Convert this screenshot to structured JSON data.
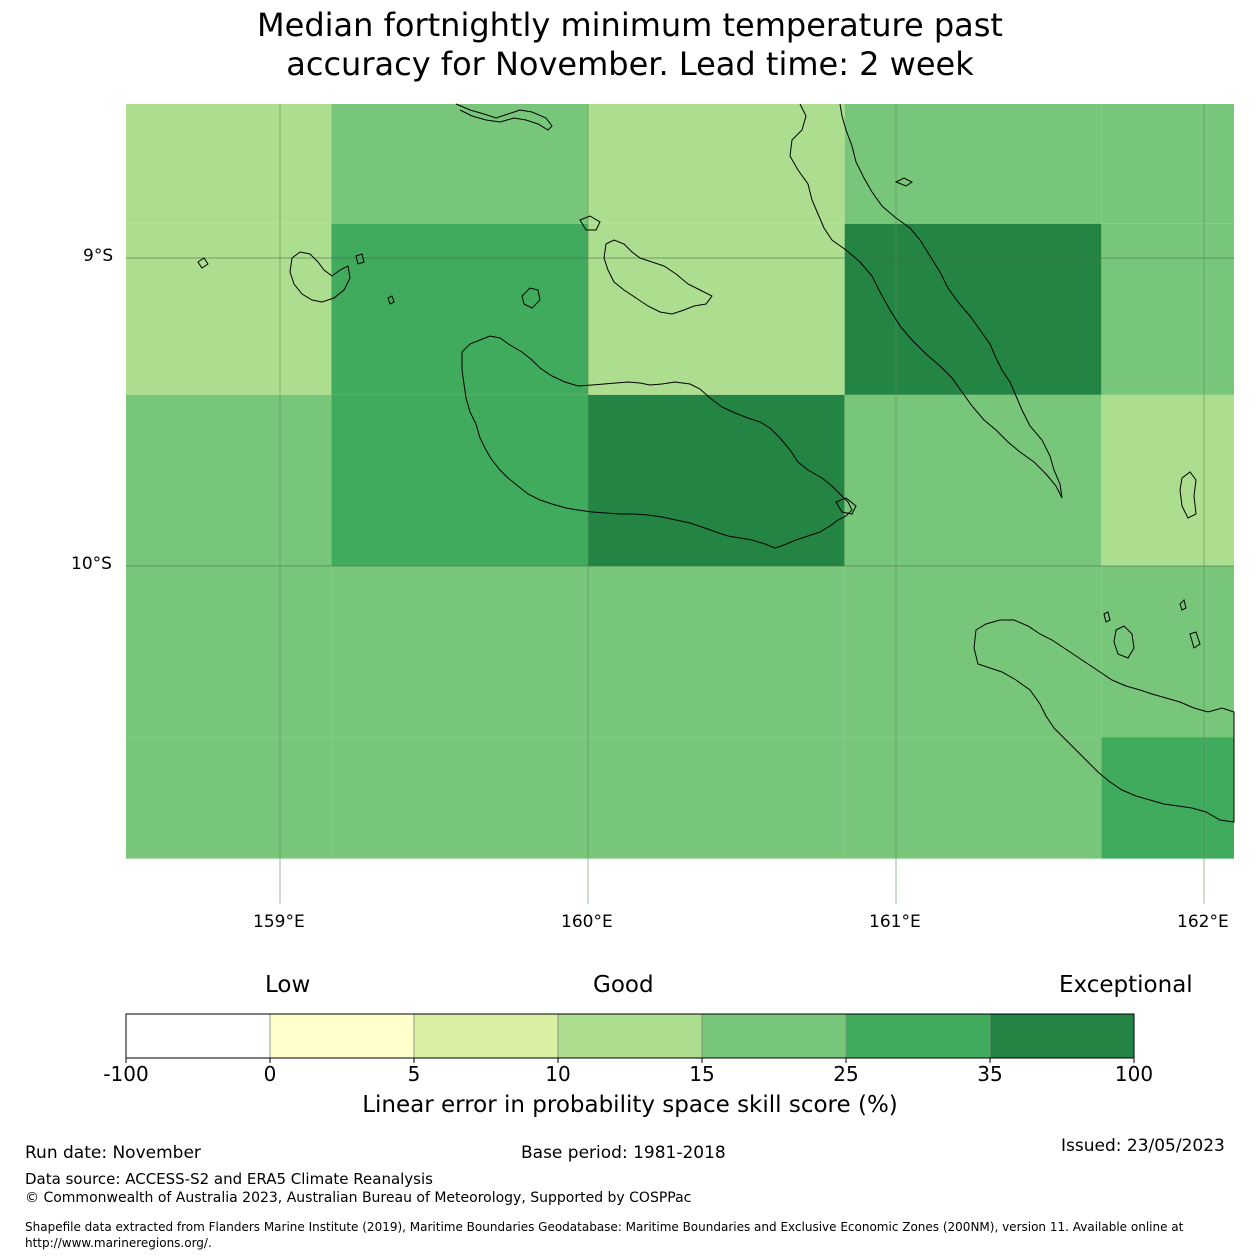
{
  "title": {
    "line1": "Median fortnightly minimum temperature past",
    "line2": "accuracy for November. Lead time: 2 week"
  },
  "chart_data": {
    "type": "heatmap",
    "lon_range": [
      158.5,
      162.1
    ],
    "lat_range": [
      -10.95,
      -8.5
    ],
    "grid_columns": [
      [
        158.5,
        159.1667
      ],
      [
        159.1667,
        160.0
      ],
      [
        160.0,
        160.8333
      ],
      [
        160.8333,
        161.6667
      ],
      [
        161.6667,
        162.1
      ]
    ],
    "grid_rows": [
      [
        -8.5,
        -8.8889
      ],
      [
        -8.8889,
        -9.4444
      ],
      [
        -9.4444,
        -10.0
      ],
      [
        -10.0,
        -10.5556
      ],
      [
        -10.5556,
        -10.95
      ]
    ],
    "skill_class_grid": [
      [
        3,
        4,
        3,
        4,
        4
      ],
      [
        3,
        5,
        3,
        6,
        4
      ],
      [
        4,
        5,
        6,
        4,
        3
      ],
      [
        4,
        4,
        4,
        4,
        4
      ],
      [
        4,
        4,
        4,
        4,
        5
      ]
    ],
    "x_ticks": [
      "159°E",
      "160°E",
      "161°E",
      "162°E"
    ],
    "x_tick_values": [
      159,
      160,
      161,
      162
    ],
    "y_ticks": [
      "9°S",
      "10°S"
    ],
    "y_tick_values": [
      -9,
      -10
    ],
    "colorbar": {
      "bounds": [
        "-100",
        "0",
        "5",
        "10",
        "15",
        "25",
        "35",
        "100"
      ],
      "colors": [
        "#ffffff",
        "#ffffcc",
        "#d9f0a3",
        "#addd8e",
        "#78c679",
        "#41ab5d",
        "#238443"
      ],
      "labels": {
        "low": "Low",
        "good": "Good",
        "exceptional": "Exceptional"
      },
      "title": "Linear error in probability space skill score (%)"
    }
  },
  "footer": {
    "run_date": "Run date: November",
    "base_period": "Base period: 1981-2018",
    "issued": "Issued: 23/05/2023",
    "data_source": "Data source: ACCESS-S2 and ERA5 Climate Reanalysis",
    "copyright": "© Commonwealth of Australia 2023, Australian Bureau of Meteorology, Supported by COSPPac",
    "shapefile_line1": "Shapefile data extracted from Flanders Marine Institute (2019), Maritime Boundaries Geodatabase: Maritime Boundaries and Exclusive Economic Zones (200NM), version 11. Available online at",
    "shapefile_line2": "http://www.marineregions.org/."
  }
}
